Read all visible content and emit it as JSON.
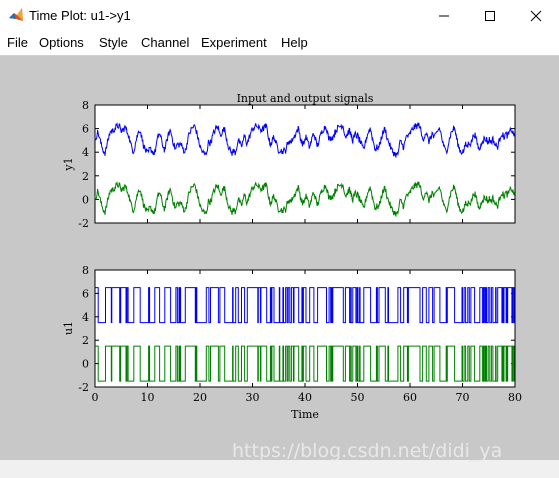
{
  "window": {
    "title": "Time Plot: u1->y1",
    "minimize_icon": "minimize-icon",
    "maximize_icon": "maximize-icon",
    "close_icon": "close-icon"
  },
  "menu": [
    "File",
    "Options",
    "Style",
    "Channel",
    "Experiment",
    "Help"
  ],
  "watermark": "https://blog.csdn.net/didi_ya",
  "colors": {
    "figure_bg": "#c8c8c8",
    "series_blue": "#0000ff",
    "series_green": "#008000"
  },
  "chart_data": [
    {
      "type": "line",
      "title": "Input and output signals",
      "xlabel": "",
      "ylabel": "y1",
      "xlim": [
        0,
        80
      ],
      "ylim": [
        -2,
        8
      ],
      "yticks": [
        "8",
        "6",
        "4",
        "2",
        "0",
        "-2"
      ],
      "series": [
        {
          "kind": "smooth",
          "color": "#0000ff",
          "offset": 5,
          "amplitude": 1,
          "description": "noisy signal between ~3.5 and ~6.5"
        },
        {
          "kind": "smooth",
          "color": "#008000",
          "offset": 0,
          "amplitude": 1,
          "description": "noisy signal between ~-1.5 and ~1.5"
        }
      ]
    },
    {
      "type": "line",
      "title": "",
      "xlabel": "Time",
      "ylabel": "u1",
      "xlim": [
        0,
        80
      ],
      "ylim": [
        -2,
        8
      ],
      "yticks": [
        "8",
        "6",
        "4",
        "2",
        "0",
        "-2"
      ],
      "xticks": [
        "0",
        "10",
        "20",
        "30",
        "40",
        "50",
        "60",
        "70",
        "80"
      ],
      "series": [
        {
          "kind": "binary",
          "color": "#0000ff",
          "low": 3.5,
          "high": 6.5
        },
        {
          "kind": "binary",
          "color": "#008000",
          "low": -1.5,
          "high": 1.5
        }
      ]
    }
  ]
}
